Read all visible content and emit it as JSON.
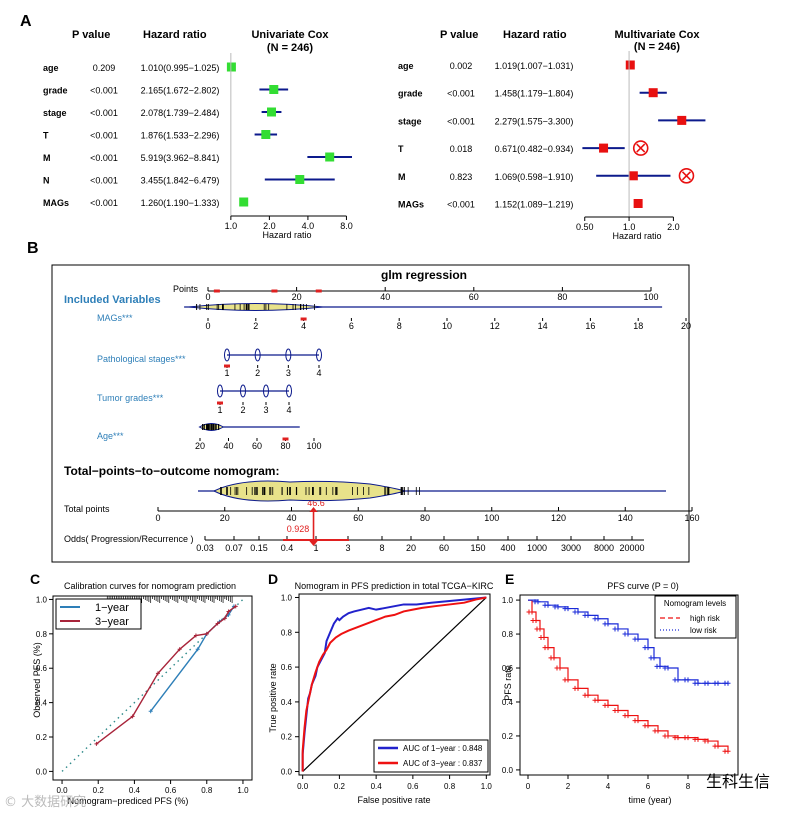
{
  "panel_labels": {
    "a": "A",
    "b": "B",
    "c": "C",
    "d": "D",
    "e": "E"
  },
  "colors": {
    "green": "#33dd33",
    "red": "#e81010",
    "navy": "#0c1a8c",
    "blue": "#1e4ee0",
    "light_blue": "#2e7fb8",
    "highlight": "#e02020",
    "yellow": "#e8e28a"
  },
  "forest_uni": {
    "title": "Univariate Cox",
    "subtitle": "(N = 246)",
    "h_p": "P value",
    "h_hr": "Hazard ratio",
    "rows": [
      {
        "name": "age",
        "p": "0.209",
        "hr_text": "1.010(0.995−1.025)",
        "hr": 1.01,
        "lo": 0.995,
        "hi": 1.025
      },
      {
        "name": "grade",
        "p": "<0.001",
        "hr_text": "2.165(1.672−2.802)",
        "hr": 2.165,
        "lo": 1.672,
        "hi": 2.802
      },
      {
        "name": "stage",
        "p": "<0.001",
        "hr_text": "2.078(1.739−2.484)",
        "hr": 2.078,
        "lo": 1.739,
        "hi": 2.484
      },
      {
        "name": "T",
        "p": "<0.001",
        "hr_text": "1.876(1.533−2.296)",
        "hr": 1.876,
        "lo": 1.533,
        "hi": 2.296
      },
      {
        "name": "M",
        "p": "<0.001",
        "hr_text": "5.919(3.962−8.841)",
        "hr": 5.919,
        "lo": 3.962,
        "hi": 8.841
      },
      {
        "name": "N",
        "p": "<0.001",
        "hr_text": "3.455(1.842−6.479)",
        "hr": 3.455,
        "lo": 1.842,
        "hi": 6.479
      },
      {
        "name": "MAGs",
        "p": "<0.001",
        "hr_text": "1.260(1.190−1.333)",
        "hr": 1.26,
        "lo": 1.19,
        "hi": 1.333
      }
    ],
    "ticks": [
      "1.0",
      "2.0",
      "4.0",
      "8.0"
    ],
    "tick_values": [
      1,
      2,
      4,
      8
    ],
    "xlabel": "Hazard ratio",
    "scale": "log",
    "xlim": [
      0.95,
      9.5
    ]
  },
  "forest_multi": {
    "title": "Multivariate Cox",
    "subtitle": "(N = 246)",
    "h_p": "P value",
    "h_hr": "Hazard ratio",
    "rows": [
      {
        "name": "age",
        "p": "0.002",
        "hr_text": "1.019(1.007−1.031)",
        "hr": 1.019,
        "lo": 1.007,
        "hi": 1.031
      },
      {
        "name": "grade",
        "p": "<0.001",
        "hr_text": "1.458(1.179−1.804)",
        "hr": 1.458,
        "lo": 1.179,
        "hi": 1.804
      },
      {
        "name": "stage",
        "p": "<0.001",
        "hr_text": "2.279(1.575−3.300)",
        "hr": 2.279,
        "lo": 1.575,
        "hi": 3.3
      },
      {
        "name": "T",
        "p": "0.018",
        "hr_text": "0.671(0.482−0.934)",
        "hr": 0.671,
        "lo": 0.482,
        "hi": 0.934,
        "excluded": true
      },
      {
        "name": "M",
        "p": "0.823",
        "hr_text": "1.069(0.598−1.910)",
        "hr": 1.069,
        "lo": 0.598,
        "hi": 1.91,
        "excluded": true
      },
      {
        "name": "MAGs",
        "p": "<0.001",
        "hr_text": "1.152(1.089−1.219)",
        "hr": 1.152,
        "lo": 1.089,
        "hi": 1.219
      }
    ],
    "ticks": [
      "0.50",
      "1.0",
      "2.0"
    ],
    "tick_values": [
      0.5,
      1,
      2
    ],
    "xlabel": "Hazard ratio",
    "scale": "log",
    "xlim": [
      0.45,
      3.6
    ]
  },
  "nomogram": {
    "title": "glm regression",
    "points_label": "Points",
    "points_ticks": [
      "0",
      "20",
      "40",
      "60",
      "80",
      "100"
    ],
    "points_values": [
      0,
      20,
      40,
      60,
      80,
      100
    ],
    "included_label": "Included Variables",
    "variables": [
      {
        "label": "MAGs***",
        "ticks": [
          "0",
          "2",
          "4",
          "6",
          "8",
          "10",
          "12",
          "14",
          "16",
          "18",
          "20"
        ],
        "tick_values": [
          0,
          2,
          4,
          6,
          8,
          10,
          12,
          14,
          16,
          18,
          20
        ],
        "range": [
          -1,
          19
        ],
        "highlight": 4
      },
      {
        "label": "Pathological stages***",
        "ticks": [
          "1",
          "2",
          "3",
          "4"
        ],
        "tick_values": [
          1,
          2,
          3,
          4
        ],
        "range": [
          1,
          4
        ],
        "highlight": 1
      },
      {
        "label": "Tumor grades***",
        "ticks": [
          "1",
          "2",
          "3",
          "4"
        ],
        "tick_values": [
          1,
          2,
          3,
          4
        ],
        "range": [
          1,
          4
        ],
        "highlight": 1
      },
      {
        "label": "Age***",
        "ticks": [
          "20",
          "40",
          "60",
          "80",
          "100"
        ],
        "tick_values": [
          20,
          40,
          60,
          80,
          100
        ],
        "range": [
          30,
          90
        ],
        "highlight": 80
      }
    ],
    "total_title": "Total−points−to−outcome nomogram:",
    "total_label": "Total points",
    "total_ticks": [
      "0",
      "20",
      "40",
      "60",
      "80",
      "100",
      "120",
      "140",
      "160"
    ],
    "total_values": [
      0,
      20,
      40,
      60,
      80,
      100,
      120,
      140,
      160
    ],
    "total_value": "46.6",
    "odds_label": "Odds( Progression/Recurrence )",
    "odds_ticks": [
      "0.03",
      "0.07",
      "0.15",
      "0.4",
      "1",
      "3",
      "8",
      "20",
      "60",
      "150",
      "400",
      "1000",
      "3000",
      "8000",
      "20000"
    ],
    "odds_value": "0.928"
  },
  "calibration": {
    "type": "line",
    "title": "Calibration curves for nomogram prediction",
    "xlabel": "Nomogram−prediced PFS (%)",
    "ylabel": "Observed PFS (%)",
    "ticks": [
      "0.0",
      "0.2",
      "0.4",
      "0.6",
      "0.8",
      "1.0"
    ],
    "tick_values": [
      0,
      0.2,
      0.4,
      0.6,
      0.8,
      1.0
    ],
    "xlim": [
      -0.05,
      1.05
    ],
    "ylim": [
      -0.05,
      1.02
    ],
    "series": [
      {
        "name": "1−year",
        "color": "#2e7fb8",
        "x": [
          0.49,
          0.75,
          0.8,
          0.87,
          0.92,
          0.95
        ],
        "y": [
          0.35,
          0.71,
          0.8,
          0.87,
          0.91,
          0.96
        ]
      },
      {
        "name": "3−year",
        "color": "#a8243a",
        "x": [
          0.19,
          0.39,
          0.53,
          0.65,
          0.74,
          0.8,
          0.86,
          0.9,
          0.92,
          0.96
        ],
        "y": [
          0.16,
          0.32,
          0.57,
          0.71,
          0.79,
          0.8,
          0.86,
          0.89,
          0.93,
          0.96
        ]
      }
    ]
  },
  "roc": {
    "type": "line",
    "title": "Nomogram in PFS prediction in total TCGA−KIRC",
    "xlabel": "False positive rate",
    "ylabel": "True positive rate",
    "ticks": [
      "0.0",
      "0.2",
      "0.4",
      "0.6",
      "0.8",
      "1.0"
    ],
    "tick_values": [
      0,
      0.2,
      0.4,
      0.6,
      0.8,
      1.0
    ],
    "series": [
      {
        "name": "AUC of  1−year : 0.848",
        "color": "#2222cc",
        "x": [
          0,
          0,
          0.01,
          0.02,
          0.03,
          0.04,
          0.05,
          0.07,
          0.08,
          0.1,
          0.12,
          0.13,
          0.15,
          0.17,
          0.19,
          0.2,
          0.22,
          0.25,
          0.28,
          0.32,
          0.36,
          0.4,
          0.45,
          0.5,
          0.55,
          0.62,
          0.7,
          0.8,
          0.9,
          1.0
        ],
        "y": [
          0,
          0.1,
          0.22,
          0.32,
          0.42,
          0.45,
          0.5,
          0.55,
          0.6,
          0.64,
          0.68,
          0.75,
          0.8,
          0.85,
          0.88,
          0.87,
          0.89,
          0.91,
          0.92,
          0.93,
          0.94,
          0.93,
          0.94,
          0.95,
          0.96,
          0.96,
          0.97,
          0.98,
          0.99,
          1.0
        ]
      },
      {
        "name": "AUC of  3−year : 0.837",
        "color": "#ee1111",
        "x": [
          0,
          0,
          0.01,
          0.02,
          0.04,
          0.05,
          0.07,
          0.09,
          0.11,
          0.13,
          0.15,
          0.18,
          0.21,
          0.25,
          0.3,
          0.35,
          0.4,
          0.45,
          0.5,
          0.55,
          0.6,
          0.65,
          0.72,
          0.8,
          0.88,
          0.95,
          1.0
        ],
        "y": [
          0,
          0.12,
          0.25,
          0.35,
          0.45,
          0.5,
          0.57,
          0.63,
          0.67,
          0.7,
          0.74,
          0.77,
          0.79,
          0.81,
          0.83,
          0.85,
          0.87,
          0.89,
          0.9,
          0.92,
          0.93,
          0.94,
          0.95,
          0.96,
          0.97,
          0.99,
          1.0
        ]
      }
    ]
  },
  "km": {
    "type": "line",
    "title": "PFS curve (P = 0)",
    "xlabel": "time (year)",
    "ylabel": "PFS rate",
    "xticks": [
      "0",
      "2",
      "4",
      "6",
      "8"
    ],
    "xtick_values": [
      0,
      2,
      4,
      6,
      8
    ],
    "yticks": [
      "0.0",
      "0.2",
      "0.4",
      "0.6",
      "0.8",
      "1.0"
    ],
    "ytick_values": [
      0,
      0.2,
      0.4,
      0.6,
      0.8,
      1.0
    ],
    "xlim": [
      0,
      10.5
    ],
    "legend_title": "Nomogram levels",
    "series": [
      {
        "name": "high risk",
        "color": "#ee1111",
        "x": [
          0,
          0.2,
          0.4,
          0.6,
          0.8,
          1.0,
          1.3,
          1.6,
          2.0,
          2.5,
          3.0,
          3.5,
          4.0,
          4.5,
          5.0,
          5.5,
          6.0,
          6.5,
          7.0,
          7.5,
          8.0,
          8.5,
          9.0,
          9.5,
          10.0
        ],
        "y": [
          1.0,
          0.93,
          0.88,
          0.83,
          0.78,
          0.72,
          0.66,
          0.6,
          0.53,
          0.48,
          0.44,
          0.41,
          0.38,
          0.35,
          0.32,
          0.29,
          0.26,
          0.23,
          0.2,
          0.19,
          0.19,
          0.18,
          0.17,
          0.14,
          0.11
        ]
      },
      {
        "name": "low risk",
        "color": "#1a2ad8",
        "x": [
          0,
          0.5,
          1.0,
          1.5,
          2.0,
          2.5,
          3.0,
          3.5,
          4.0,
          4.5,
          5.0,
          5.5,
          6.0,
          6.3,
          6.6,
          7.0,
          7.5,
          8.0,
          8.5,
          9.0,
          9.5,
          10.0
        ],
        "y": [
          1.0,
          0.99,
          0.97,
          0.96,
          0.95,
          0.93,
          0.91,
          0.89,
          0.86,
          0.83,
          0.8,
          0.77,
          0.72,
          0.66,
          0.61,
          0.6,
          0.53,
          0.53,
          0.51,
          0.51,
          0.51,
          0.51
        ]
      }
    ]
  },
  "watermark_left": "© 大数据研究",
  "watermark_right": "生科生信"
}
